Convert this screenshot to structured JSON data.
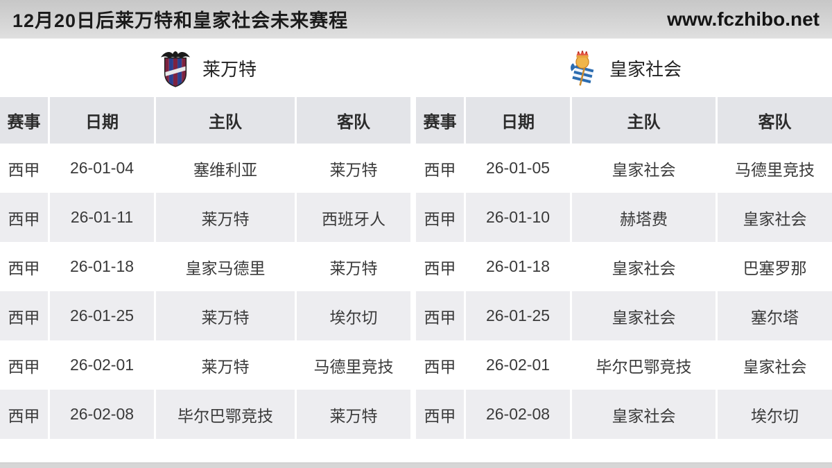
{
  "header": {
    "title": "12月20日后莱万特和皇家社会未来赛程",
    "site_url": "www.fczhibo.net"
  },
  "teams": {
    "left": {
      "name": "莱万特",
      "badge_icon": "levante-crest"
    },
    "right": {
      "name": "皇家社会",
      "badge_icon": "real-sociedad-crest"
    }
  },
  "table": {
    "columns": [
      "赛事",
      "日期",
      "主队",
      "客队"
    ]
  },
  "fixtures": {
    "left": [
      {
        "comp": "西甲",
        "date": "26-01-04",
        "home": "塞维利亚",
        "away": "莱万特"
      },
      {
        "comp": "西甲",
        "date": "26-01-11",
        "home": "莱万特",
        "away": "西班牙人"
      },
      {
        "comp": "西甲",
        "date": "26-01-18",
        "home": "皇家马德里",
        "away": "莱万特"
      },
      {
        "comp": "西甲",
        "date": "26-01-25",
        "home": "莱万特",
        "away": "埃尔切"
      },
      {
        "comp": "西甲",
        "date": "26-02-01",
        "home": "莱万特",
        "away": "马德里竞技"
      },
      {
        "comp": "西甲",
        "date": "26-02-08",
        "home": "毕尔巴鄂竞技",
        "away": "莱万特"
      }
    ],
    "right": [
      {
        "comp": "西甲",
        "date": "26-01-05",
        "home": "皇家社会",
        "away": "马德里竞技"
      },
      {
        "comp": "西甲",
        "date": "26-01-10",
        "home": "赫塔费",
        "away": "皇家社会"
      },
      {
        "comp": "西甲",
        "date": "26-01-18",
        "home": "皇家社会",
        "away": "巴塞罗那"
      },
      {
        "comp": "西甲",
        "date": "26-01-25",
        "home": "皇家社会",
        "away": "塞尔塔"
      },
      {
        "comp": "西甲",
        "date": "26-02-01",
        "home": "毕尔巴鄂竞技",
        "away": "皇家社会"
      },
      {
        "comp": "西甲",
        "date": "26-02-08",
        "home": "皇家社会",
        "away": "埃尔切"
      }
    ]
  },
  "colors": {
    "topbar_bg": "#d2d2d2",
    "header_row_bg": "#e3e4e8",
    "row_stripe": "#ededf0",
    "levante_garnet": "#7d2240",
    "levante_blue": "#2a3f8f",
    "sociedad_blue": "#2b6cb0",
    "sociedad_gold": "#efb54a",
    "sociedad_crown_red": "#e2523e"
  }
}
